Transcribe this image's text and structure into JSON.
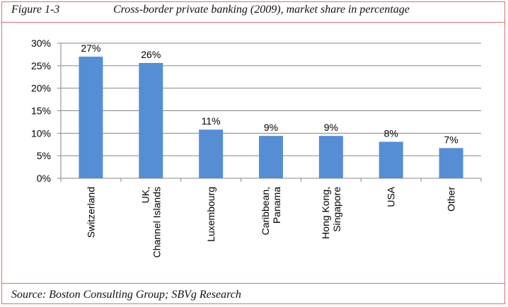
{
  "figure": {
    "label": "Figure 1-3",
    "title": "Cross-border private banking (2009), market share in percentage",
    "source": "Source: Boston Consulting Group; SBVg Research"
  },
  "colors": {
    "bar": "#558ed5",
    "grid": "#868686",
    "border": "#d9736a"
  },
  "chart_data": {
    "type": "bar",
    "title": "Cross-border private banking (2009), market share in percentage",
    "categories": [
      [
        "Switzerland"
      ],
      [
        "UK,",
        "Channel Islands"
      ],
      [
        "Luxembourg"
      ],
      [
        "Caribbean,",
        "Panama"
      ],
      [
        "Hong Kong,",
        "Singapore"
      ],
      [
        "USA"
      ],
      [
        "Other"
      ]
    ],
    "values": [
      27,
      25.6,
      10.8,
      9.4,
      9.4,
      8.1,
      6.7
    ],
    "data_labels": [
      "27%",
      "26%",
      "11%",
      "9%",
      "9%",
      "8%",
      "7%"
    ],
    "yticks": [
      "0%",
      "5%",
      "10%",
      "15%",
      "20%",
      "25%",
      "30%"
    ],
    "ylim": [
      0,
      30
    ],
    "xlabel": "",
    "ylabel": "",
    "grid": true,
    "legend": "none"
  }
}
